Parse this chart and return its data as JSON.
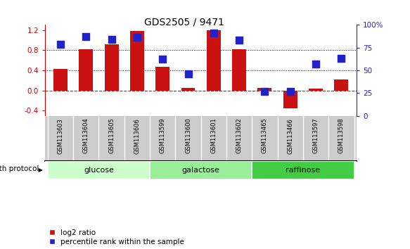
{
  "title": "GDS2505 / 9471",
  "samples": [
    "GSM113603",
    "GSM113604",
    "GSM113605",
    "GSM113606",
    "GSM113599",
    "GSM113600",
    "GSM113601",
    "GSM113602",
    "GSM113465",
    "GSM113466",
    "GSM113597",
    "GSM113598"
  ],
  "log2_ratio": [
    0.43,
    0.82,
    0.92,
    1.18,
    0.47,
    0.05,
    1.19,
    0.82,
    0.05,
    -0.35,
    0.04,
    0.22
  ],
  "pct_rank": [
    79,
    87,
    84,
    86,
    62,
    46,
    91,
    83,
    27,
    27,
    57,
    63
  ],
  "groups": [
    {
      "name": "glucose",
      "start": 0,
      "end": 4,
      "color": "#ccffcc"
    },
    {
      "name": "galactose",
      "start": 4,
      "end": 8,
      "color": "#99ee99"
    },
    {
      "name": "raffinose",
      "start": 8,
      "end": 12,
      "color": "#44cc44"
    }
  ],
  "bar_color": "#cc1111",
  "dot_color": "#2222cc",
  "ylim_left": [
    -0.5,
    1.3
  ],
  "ylim_right": [
    0,
    100
  ],
  "yticks_left": [
    -0.4,
    0.0,
    0.4,
    0.8,
    1.2
  ],
  "yticks_right": [
    0,
    25,
    50,
    75,
    100
  ],
  "hlines": [
    0.4,
    0.8
  ],
  "bar_width": 0.55,
  "dot_size": 45,
  "background_color": "#ffffff",
  "plot_bg": "#ffffff",
  "tick_area_color": "#cccccc",
  "legend_red_label": "log2 ratio",
  "legend_blue_label": "percentile rank within the sample"
}
